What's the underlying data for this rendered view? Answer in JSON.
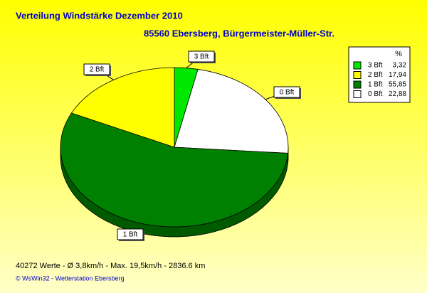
{
  "chart_data": {
    "type": "pie",
    "title": "Verteilung Windstärke  Dezember 2010",
    "subtitle": "85560 Ebersberg, Bürgermeister-Müller-Str.",
    "legend_title": "%",
    "categories": [
      "3 Bft",
      "2 Bft",
      "1 Bft",
      "0 Bft"
    ],
    "values": [
      3.32,
      17.94,
      55.85,
      22.88
    ],
    "value_labels": [
      "3,32",
      "17,94",
      "55,85",
      "22,88"
    ],
    "colors": [
      "#00e800",
      "#ffff00",
      "#008000",
      "#ffffff"
    ],
    "stats": "40272 Werte   -   Ø 3,8km/h  -  Max. 19,5km/h   -   2836.6 km",
    "credit": "© WsWin32  -  Wetterstation Ebersberg"
  }
}
